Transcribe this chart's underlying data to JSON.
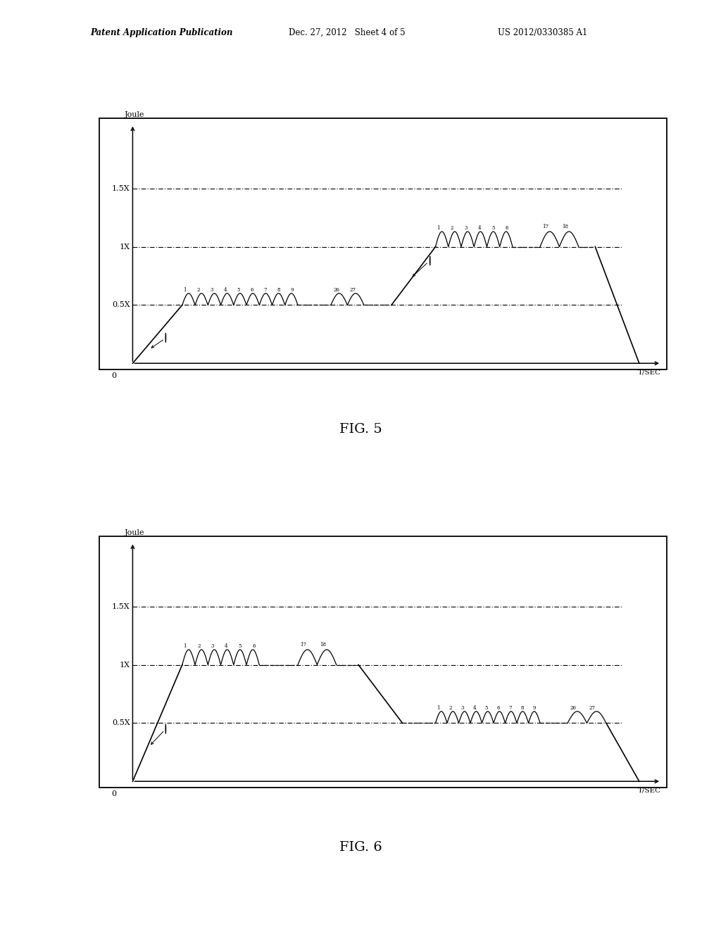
{
  "header": {
    "left": "Patent Application Publication",
    "center": "Dec. 27, 2012   Sheet 4 of 5",
    "right": "US 2012/0330385 A1"
  },
  "fig5_caption": "FIG. 5",
  "fig6_caption": "FIG. 6",
  "ylabel": "Joule",
  "xlabel": "T/SEC",
  "level_labels": [
    "1.5X",
    "1X",
    "0.5X"
  ],
  "level_values": [
    1.5,
    1.0,
    0.5
  ],
  "bg_color": "#ffffff"
}
